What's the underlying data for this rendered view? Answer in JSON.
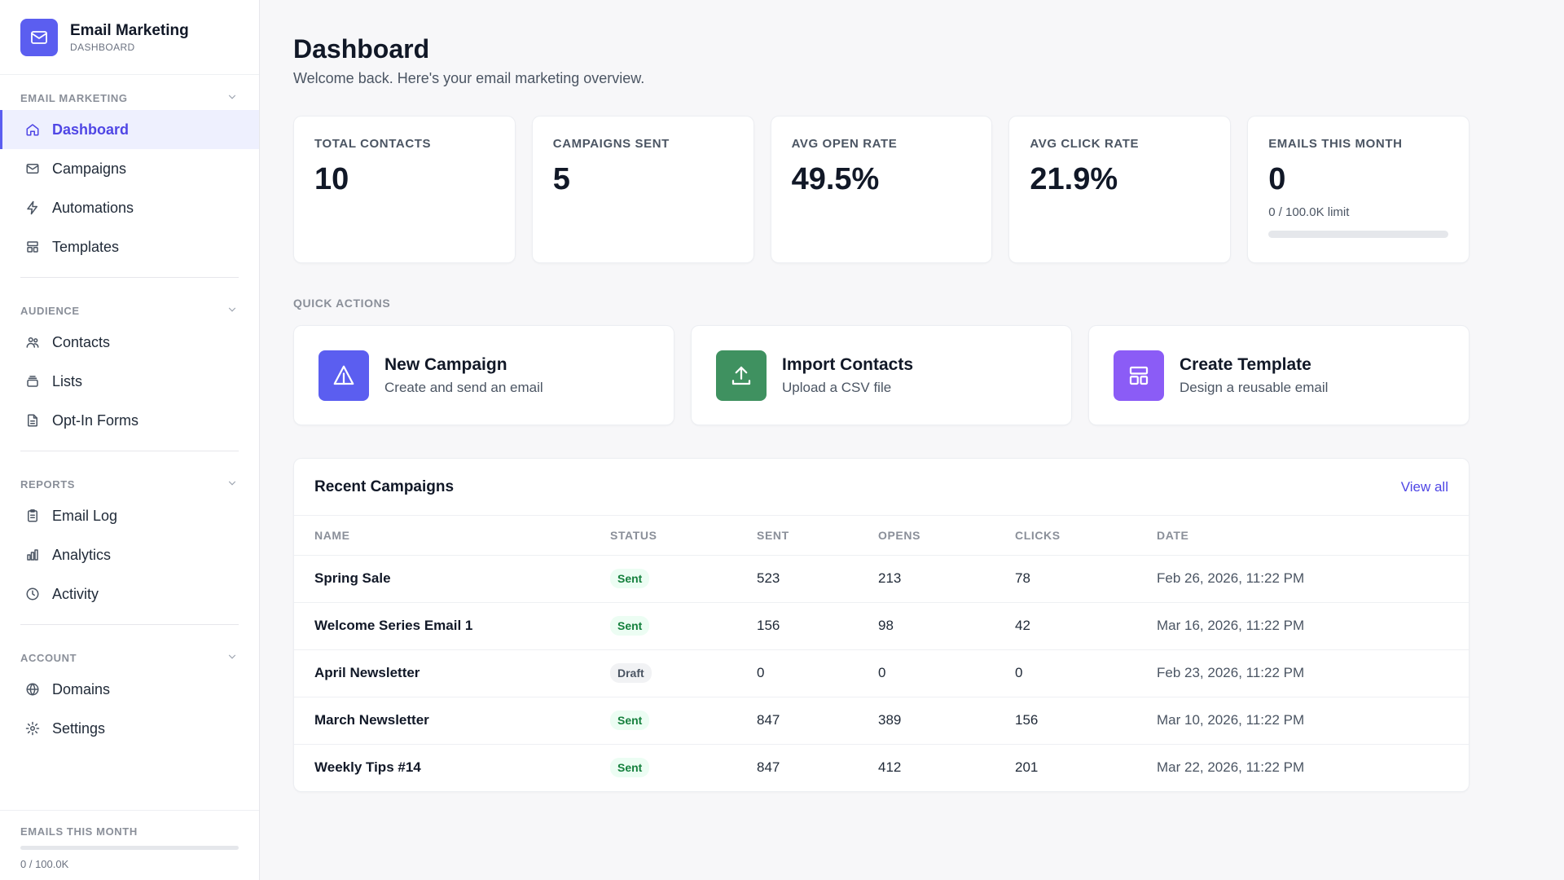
{
  "brand": {
    "title": "Email Marketing",
    "subtitle": "DASHBOARD",
    "accent": "#5b5ef0"
  },
  "sidebar": {
    "sections": [
      {
        "title": "EMAIL MARKETING",
        "items": [
          {
            "label": "Dashboard",
            "icon": "home-icon",
            "active": true
          },
          {
            "label": "Campaigns",
            "icon": "mail-icon"
          },
          {
            "label": "Automations",
            "icon": "lightning-icon"
          },
          {
            "label": "Templates",
            "icon": "layout-icon"
          }
        ]
      },
      {
        "title": "AUDIENCE",
        "items": [
          {
            "label": "Contacts",
            "icon": "users-icon"
          },
          {
            "label": "Lists",
            "icon": "stack-icon"
          },
          {
            "label": "Opt-In Forms",
            "icon": "document-icon"
          }
        ]
      },
      {
        "title": "REPORTS",
        "items": [
          {
            "label": "Email Log",
            "icon": "clipboard-icon"
          },
          {
            "label": "Analytics",
            "icon": "bar-chart-icon"
          },
          {
            "label": "Activity",
            "icon": "clock-icon"
          }
        ]
      },
      {
        "title": "ACCOUNT",
        "items": [
          {
            "label": "Domains",
            "icon": "globe-icon"
          },
          {
            "label": "Settings",
            "icon": "gear-icon"
          }
        ]
      }
    ],
    "footer": {
      "label": "EMAILS THIS MONTH",
      "usage": "0 / 100.0K",
      "progress": 0
    }
  },
  "page": {
    "title": "Dashboard",
    "subtitle": "Welcome back. Here's your email marketing overview."
  },
  "stats": [
    {
      "label": "TOTAL CONTACTS",
      "value": "10"
    },
    {
      "label": "CAMPAIGNS SENT",
      "value": "5"
    },
    {
      "label": "AVG OPEN RATE",
      "value": "49.5%"
    },
    {
      "label": "AVG CLICK RATE",
      "value": "21.9%"
    },
    {
      "label": "EMAILS THIS MONTH",
      "value": "0",
      "note": "0 / 100.0K limit",
      "progress": 0
    }
  ],
  "quick_actions": {
    "title": "QUICK ACTIONS",
    "items": [
      {
        "title": "New Campaign",
        "desc": "Create and send an email",
        "icon": "send-icon",
        "color": "#5b5ef0"
      },
      {
        "title": "Import Contacts",
        "desc": "Upload a CSV file",
        "icon": "upload-icon",
        "color": "#3f9160"
      },
      {
        "title": "Create Template",
        "desc": "Design a reusable email",
        "icon": "template-icon",
        "color": "#8b5cf6"
      }
    ]
  },
  "recent_campaigns": {
    "title": "Recent Campaigns",
    "view_all": "View all",
    "columns": [
      "NAME",
      "STATUS",
      "SENT",
      "OPENS",
      "CLICKS",
      "DATE"
    ],
    "rows": [
      {
        "name": "Spring Sale",
        "status": "Sent",
        "sent": "523",
        "opens": "213",
        "clicks": "78",
        "date": "Feb 26, 2026, 11:22 PM"
      },
      {
        "name": "Welcome Series Email 1",
        "status": "Sent",
        "sent": "156",
        "opens": "98",
        "clicks": "42",
        "date": "Mar 16, 2026, 11:22 PM"
      },
      {
        "name": "April Newsletter",
        "status": "Draft",
        "sent": "0",
        "opens": "0",
        "clicks": "0",
        "date": "Feb 23, 2026, 11:22 PM"
      },
      {
        "name": "March Newsletter",
        "status": "Sent",
        "sent": "847",
        "opens": "389",
        "clicks": "156",
        "date": "Mar 10, 2026, 11:22 PM"
      },
      {
        "name": "Weekly Tips #14",
        "status": "Sent",
        "sent": "847",
        "opens": "412",
        "clicks": "201",
        "date": "Mar 22, 2026, 11:22 PM"
      }
    ]
  }
}
